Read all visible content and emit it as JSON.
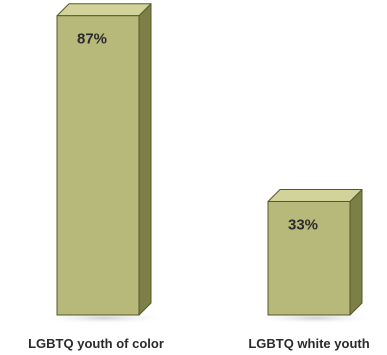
{
  "chart_data": {
    "type": "bar",
    "style": "3d-column",
    "categories": [
      "LGBTQ youth of color",
      "LGBTQ white youth"
    ],
    "values": [
      87,
      33
    ],
    "value_labels": [
      "87%",
      "33%"
    ],
    "unit": "%",
    "ylim": [
      0,
      100
    ],
    "grid": false,
    "legend": "none",
    "colors": {
      "front": "#b6b97a",
      "top": "#d1d39a",
      "side": "#7d8046",
      "outline": "#55582b",
      "shadow": "#cfd0cf",
      "label_text": "#2b2b2b"
    }
  }
}
